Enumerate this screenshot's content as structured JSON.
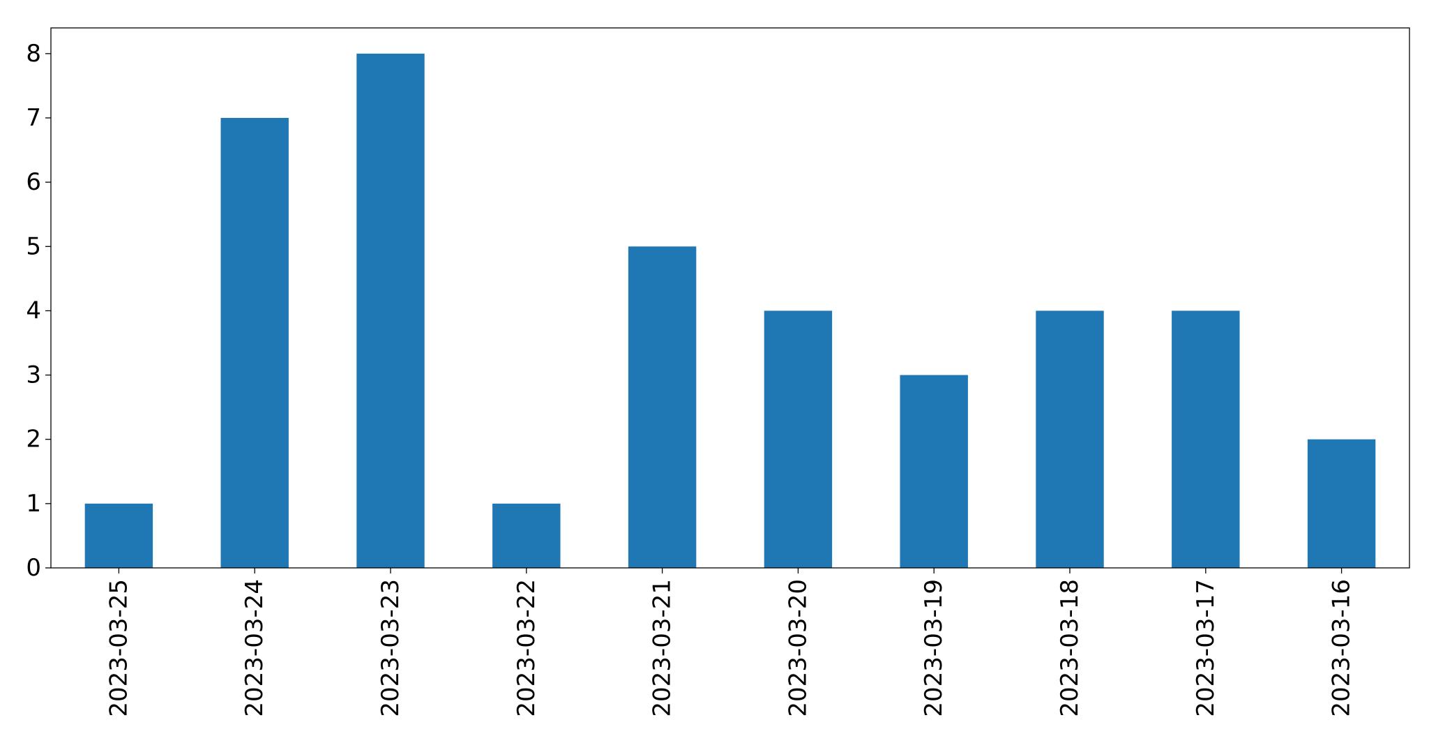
{
  "chart_data": {
    "type": "bar",
    "categories": [
      "2023-03-25",
      "2023-03-24",
      "2023-03-23",
      "2023-03-22",
      "2023-03-21",
      "2023-03-20",
      "2023-03-19",
      "2023-03-18",
      "2023-03-17",
      "2023-03-16"
    ],
    "values": [
      1,
      7,
      8,
      1,
      5,
      4,
      3,
      4,
      4,
      2
    ],
    "ylim": [
      0,
      8.4
    ],
    "yticks": [
      0,
      1,
      2,
      3,
      4,
      5,
      6,
      7,
      8
    ],
    "grid": false,
    "legend": false,
    "bar_color": "#1f77b4"
  }
}
